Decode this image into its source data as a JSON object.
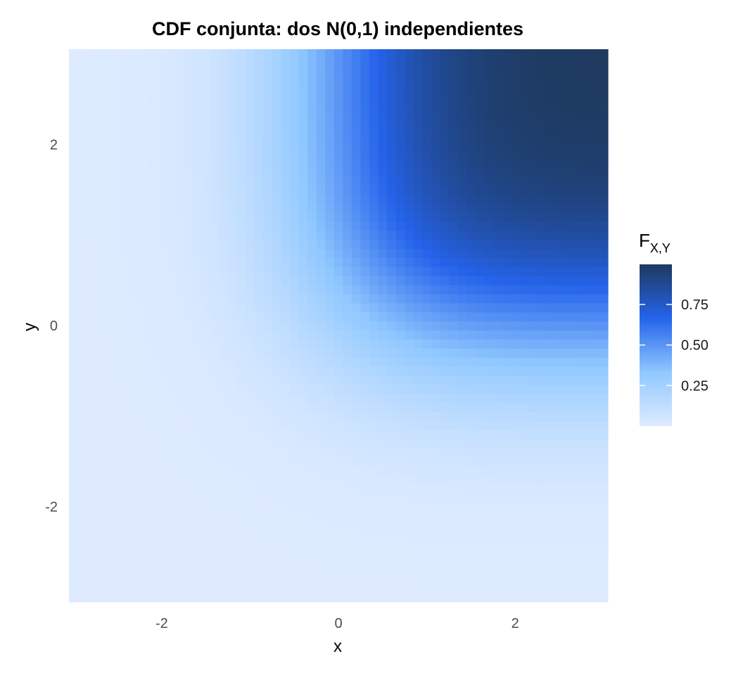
{
  "chart_data": {
    "type": "heatmap",
    "title": "CDF conjunta: dos N(0,1) independientes",
    "xlabel": "x",
    "ylabel": "y",
    "xlim": [
      -3.05,
      3.05
    ],
    "ylim": [
      -3.05,
      3.05
    ],
    "x_ticks": [
      -2,
      0,
      2
    ],
    "y_ticks": [
      -2,
      0,
      2
    ],
    "x_tick_labels": [
      "-2",
      "0",
      "2"
    ],
    "y_tick_labels": [
      "-2",
      "0",
      "2"
    ],
    "grid": true,
    "grid_range": [
      -3,
      3
    ],
    "grid_cells": 61,
    "function": "Phi(x) * Phi(y)",
    "legend": {
      "position": "right",
      "title_main": "F",
      "title_sub": "X,Y",
      "ticks": [
        0.25,
        0.5,
        0.75
      ],
      "tick_labels": [
        "0.25",
        "0.50",
        "0.75"
      ],
      "range": [
        0.0,
        0.9973
      ],
      "colors": [
        {
          "stop": 0.0,
          "color": "#deebff"
        },
        {
          "stop": 0.333,
          "color": "#90c8ff"
        },
        {
          "stop": 0.667,
          "color": "#2563eb"
        },
        {
          "stop": 1.0,
          "color": "#1e3a5f"
        }
      ]
    }
  }
}
